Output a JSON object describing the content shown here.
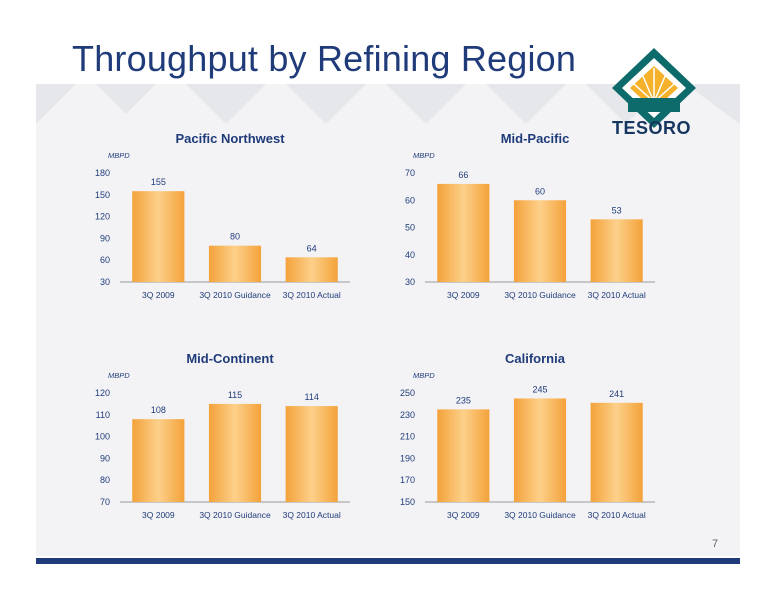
{
  "slide": {
    "title": "Throughput by Refining Region",
    "page_number": "7",
    "logo_text": "TESORO"
  },
  "colors": {
    "title": "#1f3b7a",
    "bar_light": "#fcd08a",
    "bar_dark": "#f4a23a",
    "footer": "#1f3b7a"
  },
  "chart_data": [
    {
      "type": "bar",
      "title": "Pacific Northwest",
      "unit_label": "MBPD",
      "categories": [
        "3Q 2009",
        "3Q 2010 Guidance",
        "3Q 2010 Actual"
      ],
      "values": [
        155,
        80,
        64
      ],
      "ylim": [
        30,
        180
      ],
      "yticks": [
        30,
        60,
        90,
        120,
        150,
        180
      ]
    },
    {
      "type": "bar",
      "title": "Mid-Pacific",
      "unit_label": "MBPD",
      "categories": [
        "3Q 2009",
        "3Q 2010 Guidance",
        "3Q 2010 Actual"
      ],
      "values": [
        66,
        60,
        53
      ],
      "ylim": [
        30,
        70
      ],
      "yticks": [
        30,
        40,
        50,
        60,
        70
      ]
    },
    {
      "type": "bar",
      "title": "Mid-Continent",
      "unit_label": "MBPD",
      "categories": [
        "3Q 2009",
        "3Q 2010 Guidance",
        "3Q 2010 Actual"
      ],
      "values": [
        108,
        115,
        114
      ],
      "ylim": [
        70,
        120
      ],
      "yticks": [
        70,
        80,
        90,
        100,
        110,
        120
      ]
    },
    {
      "type": "bar",
      "title": "California",
      "unit_label": "MBPD",
      "categories": [
        "3Q 2009",
        "3Q 2010 Guidance",
        "3Q 2010 Actual"
      ],
      "values": [
        235,
        245,
        241
      ],
      "ylim": [
        150,
        250
      ],
      "yticks": [
        150,
        170,
        190,
        210,
        230,
        250
      ]
    }
  ]
}
